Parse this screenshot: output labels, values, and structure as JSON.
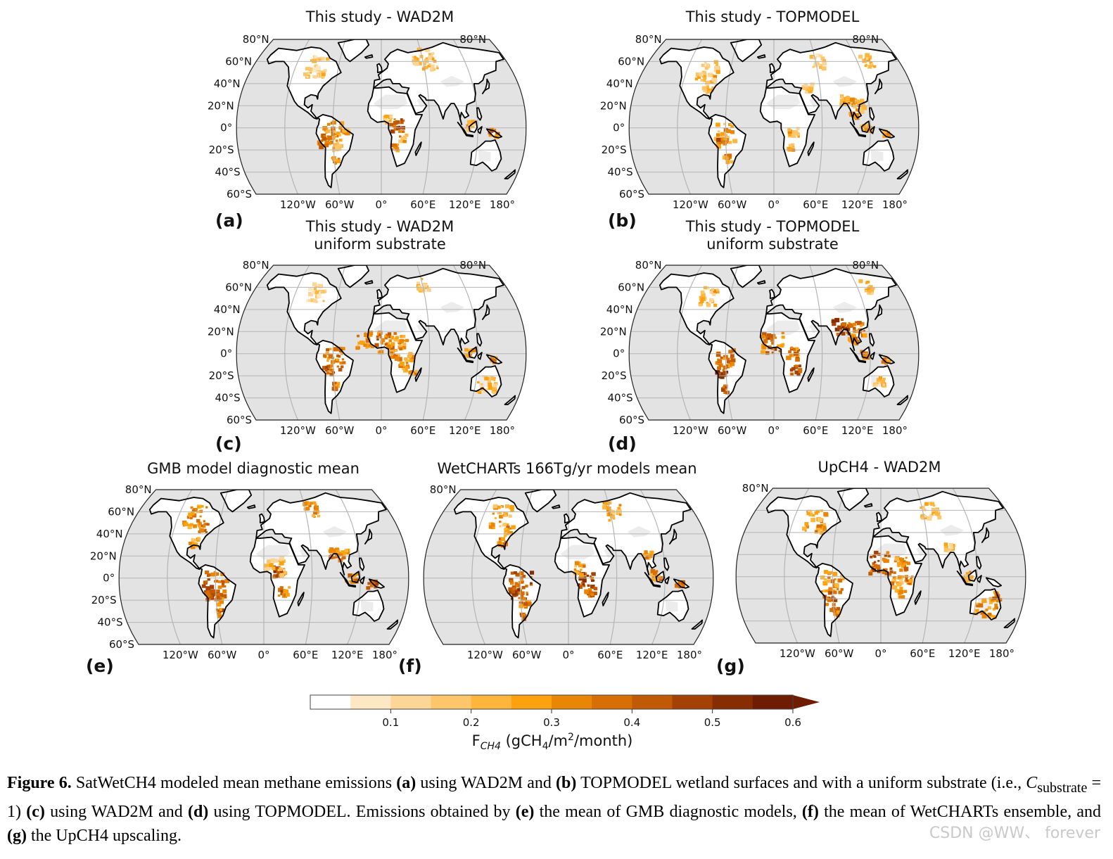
{
  "colors": {
    "ocean": "#e3e3e3",
    "land": "#ffffff",
    "grid": "#b5b5b5",
    "coast": "#000000",
    "colormap": [
      "#ffffff",
      "#fde8c4",
      "#fdd597",
      "#fdc66a",
      "#fdb53c",
      "#fda10e",
      "#ea8606",
      "#d76f05",
      "#c15a05",
      "#a44104",
      "#862d03",
      "#6e1c03"
    ]
  },
  "labels": {
    "lat_left": [
      "80°N",
      "60°N",
      "40°N",
      "20°N",
      "0°",
      "20°S",
      "40°S",
      "60°S"
    ],
    "lat_right_top": "80°N",
    "lon": [
      "120°W",
      "60°W",
      "0°",
      "60°E",
      "120°E",
      "180°"
    ]
  },
  "panels": [
    {
      "id": "a",
      "letter": "(a)",
      "title": "This study - WAD2M",
      "title2": ""
    },
    {
      "id": "b",
      "letter": "(b)",
      "title": "This study - TOPMODEL",
      "title2": ""
    },
    {
      "id": "c",
      "letter": "(c)",
      "title": "This study - WAD2M",
      "title2": "uniform substrate"
    },
    {
      "id": "d",
      "letter": "(d)",
      "title": "This study - TOPMODEL",
      "title2": "uniform substrate"
    },
    {
      "id": "e",
      "letter": "(e)",
      "title": "GMB model diagnostic mean",
      "title2": ""
    },
    {
      "id": "f",
      "letter": "(f)",
      "title": "WetCHARTs 166Tg/yr models mean",
      "title2": ""
    },
    {
      "id": "g",
      "letter": "(g)",
      "title": "UpCH4 - WAD2M",
      "title2": ""
    }
  ],
  "colorbar": {
    "ticks": [
      "0.1",
      "0.2",
      "0.3",
      "0.4",
      "0.5",
      "0.6"
    ],
    "tick_values": [
      0.1,
      0.2,
      0.3,
      0.4,
      0.5,
      0.6
    ],
    "min": 0.0,
    "max": 0.6,
    "label_prefix": "F",
    "label_sub": "CH4",
    "label_units_a": " (gCH",
    "label_units_b": "4",
    "label_units_c": "/m",
    "label_units_d": "2",
    "label_units_e": "/month)"
  },
  "caption": {
    "fig": "Figure 6.",
    "t1": " SatWetCH4 modeled mean methane emissions ",
    "a": "(a)",
    "t2": " using WAD2M and ",
    "b": "(b)",
    "t3": " TOPMODEL wetland surfaces and with a uniform substrate (i.e., ",
    "c_sym": "C",
    "c_sub": "substrate",
    "t4": " = 1) ",
    "c": "(c)",
    "t5": " using WAD2M and ",
    "d": "(d)",
    "t6": " using TOPMODEL. Emissions obtained by ",
    "e": "(e)",
    "t7": " the mean of GMB diagnostic models, ",
    "f": "(f)",
    "t8": " the mean of WetCHARTs ensemble, and ",
    "g": "(g)",
    "t9": " the UpCH4 upscaling."
  },
  "watermark": "CSDN @WW、 forever"
}
